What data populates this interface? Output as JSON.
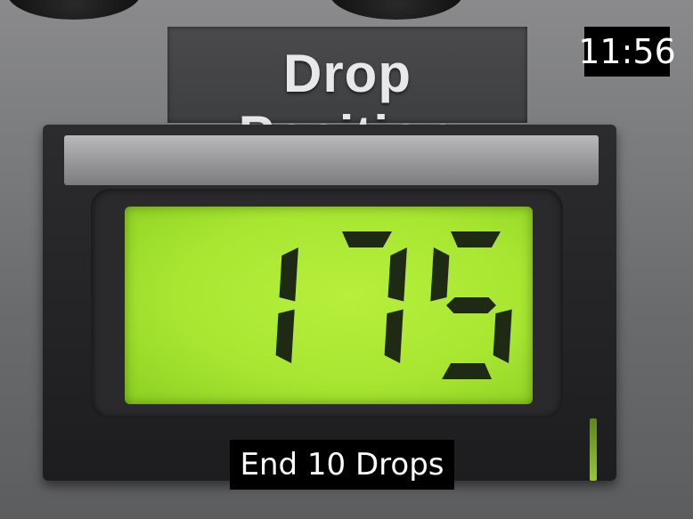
{
  "panel": {
    "label": "Drop Position"
  },
  "display": {
    "reading": "175",
    "backlight_color": "#a8e632",
    "segment_color": "#1f2a14"
  },
  "overlay": {
    "time": "11:56",
    "caption": "End 10 Drops"
  }
}
